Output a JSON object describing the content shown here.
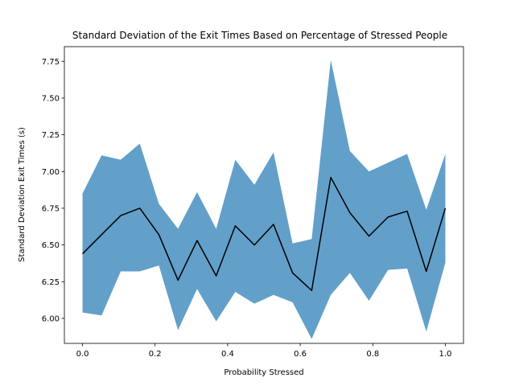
{
  "chart_data": {
    "type": "line",
    "title": "Standard Deviation of the Exit Times Based on Percentage of Stressed People",
    "xlabel": "Probability Stressed",
    "ylabel": "Standard Deviation Exit Times (s)",
    "xlim": [
      -0.05,
      1.05
    ],
    "ylim": [
      5.83,
      7.85
    ],
    "xticks": [
      0.0,
      0.2,
      0.4,
      0.6,
      0.8,
      1.0
    ],
    "xtick_labels": [
      "0.0",
      "0.2",
      "0.4",
      "0.6",
      "0.8",
      "1.0"
    ],
    "yticks": [
      6.0,
      6.25,
      6.5,
      6.75,
      7.0,
      7.25,
      7.5,
      7.75
    ],
    "ytick_labels": [
      "6.00",
      "6.25",
      "6.50",
      "6.75",
      "7.00",
      "7.25",
      "7.50",
      "7.75"
    ],
    "grid": false,
    "legend": "none",
    "colors": {
      "line": "#000000",
      "band": "#1f77b4"
    },
    "x": [
      0.0,
      0.0526,
      0.1053,
      0.1579,
      0.2105,
      0.2632,
      0.3158,
      0.3684,
      0.4211,
      0.4737,
      0.5263,
      0.5789,
      0.6316,
      0.6842,
      0.7368,
      0.7895,
      0.8421,
      0.8947,
      0.9474,
      1.0
    ],
    "series": [
      {
        "role": "mean",
        "values": [
          6.44,
          6.57,
          6.7,
          6.75,
          6.57,
          6.26,
          6.53,
          6.29,
          6.63,
          6.5,
          6.64,
          6.31,
          6.19,
          6.96,
          6.72,
          6.56,
          6.69,
          6.73,
          6.32,
          6.75
        ]
      },
      {
        "role": "upper",
        "values": [
          6.85,
          7.11,
          7.08,
          7.19,
          6.78,
          6.61,
          6.86,
          6.61,
          7.08,
          6.91,
          7.13,
          6.51,
          6.54,
          7.76,
          7.14,
          7.0,
          7.06,
          7.12,
          6.74,
          7.12
        ]
      },
      {
        "role": "lower",
        "values": [
          6.04,
          6.02,
          6.32,
          6.32,
          6.36,
          5.92,
          6.2,
          5.98,
          6.18,
          6.1,
          6.16,
          6.11,
          5.86,
          6.16,
          6.31,
          6.12,
          6.33,
          6.34,
          5.91,
          6.38
        ]
      }
    ]
  }
}
